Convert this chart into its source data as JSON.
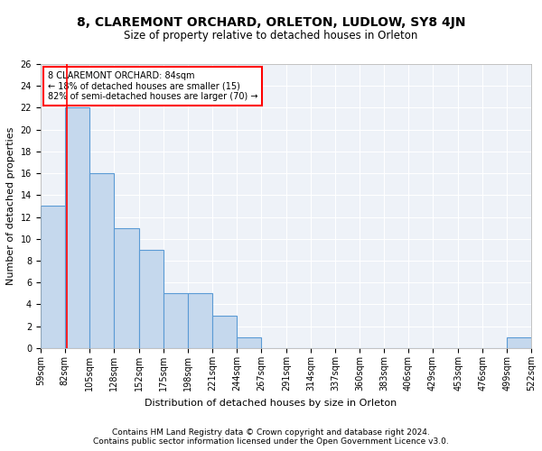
{
  "title1": "8, CLAREMONT ORCHARD, ORLETON, LUDLOW, SY8 4JN",
  "title2": "Size of property relative to detached houses in Orleton",
  "xlabel": "Distribution of detached houses by size in Orleton",
  "ylabel": "Number of detached properties",
  "bin_edges": [
    59,
    82,
    105,
    128,
    152,
    175,
    198,
    221,
    244,
    267,
    291,
    314,
    337,
    360,
    383,
    406,
    429,
    453,
    476,
    499,
    522
  ],
  "bin_labels": [
    "59sqm",
    "82sqm",
    "105sqm",
    "128sqm",
    "152sqm",
    "175sqm",
    "198sqm",
    "221sqm",
    "244sqm",
    "267sqm",
    "291sqm",
    "314sqm",
    "337sqm",
    "360sqm",
    "383sqm",
    "406sqm",
    "429sqm",
    "453sqm",
    "476sqm",
    "499sqm",
    "522sqm"
  ],
  "counts": [
    13,
    22,
    16,
    11,
    9,
    5,
    5,
    3,
    1,
    0,
    0,
    0,
    0,
    0,
    0,
    0,
    0,
    0,
    0,
    1
  ],
  "bar_color": "#c5d8ed",
  "bar_edge_color": "#5b9bd5",
  "bar_linewidth": 0.8,
  "vline_x": 84,
  "vline_color": "red",
  "annotation_text": "8 CLAREMONT ORCHARD: 84sqm\n← 18% of detached houses are smaller (15)\n82% of semi-detached houses are larger (70) →",
  "annotation_box_color": "white",
  "annotation_box_edge": "red",
  "ylim": [
    0,
    26
  ],
  "yticks": [
    0,
    2,
    4,
    6,
    8,
    10,
    12,
    14,
    16,
    18,
    20,
    22,
    24,
    26
  ],
  "footnote1": "Contains HM Land Registry data © Crown copyright and database right 2024.",
  "footnote2": "Contains public sector information licensed under the Open Government Licence v3.0.",
  "background_color": "#eef2f8",
  "grid_color": "white",
  "title1_fontsize": 10,
  "title2_fontsize": 8.5,
  "xlabel_fontsize": 8,
  "ylabel_fontsize": 8,
  "tick_fontsize": 7,
  "footnote_fontsize": 6.5
}
